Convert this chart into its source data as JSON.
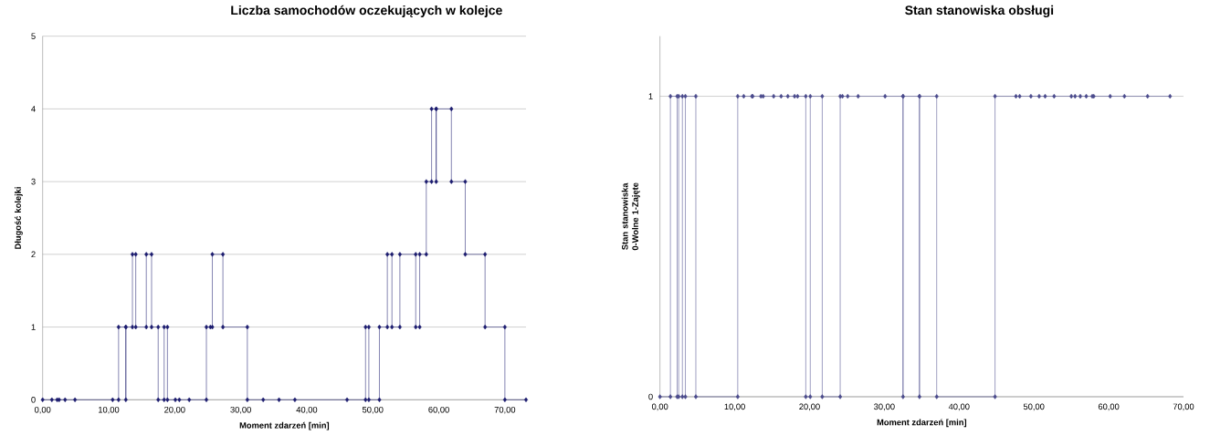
{
  "chart_data": [
    {
      "type": "line",
      "title": "Liczba samochodów oczekujących w kolejce",
      "xlabel": "Moment zdarzeń [min]",
      "ylabel": "Długość kolejki",
      "x": [
        0,
        1.4,
        2.2,
        2.5,
        3.4,
        4.9,
        10.6,
        11.5,
        11.5,
        12.6,
        12.6,
        12.6,
        13.6,
        13.6,
        14.1,
        14.1,
        15.7,
        15.7,
        16.5,
        16.5,
        17.5,
        17.5,
        18.4,
        18.4,
        18.9,
        18.9,
        20.1,
        20.7,
        22.2,
        24.8,
        24.8,
        25.4,
        25.7,
        25.7,
        27.3,
        27.3,
        31.0,
        31.0,
        33.4,
        35.8,
        38.2,
        46.1,
        48.9,
        48.9,
        49.4,
        49.4,
        51.0,
        51.0,
        52.2,
        52.2,
        52.9,
        52.9,
        54.1,
        54.1,
        56.5,
        56.5,
        57.1,
        57.1,
        58.1,
        58.1,
        58.9,
        58.9,
        59.6,
        59.6,
        59.6,
        61.9,
        61.9,
        64.0,
        64.0,
        67.0,
        67.0,
        70.0,
        70.0,
        73.2
      ],
      "values": [
        0,
        0,
        0,
        0,
        0,
        0,
        0,
        0,
        1,
        1,
        0,
        1,
        1,
        2,
        2,
        1,
        1,
        2,
        2,
        1,
        1,
        0,
        0,
        1,
        1,
        0,
        0,
        0,
        0,
        0,
        1,
        1,
        1,
        2,
        2,
        1,
        1,
        0,
        0,
        0,
        0,
        0,
        0,
        1,
        1,
        0,
        0,
        1,
        1,
        2,
        2,
        1,
        1,
        2,
        2,
        1,
        1,
        2,
        2,
        3,
        3,
        4,
        4,
        3,
        4,
        4,
        3,
        3,
        2,
        2,
        1,
        1,
        0,
        0
      ],
      "color": "#1a1a6e",
      "marker": "diamond",
      "line_style": "solid",
      "grid": "y",
      "xlim": [
        0,
        73.2
      ],
      "ylim": [
        0,
        5
      ],
      "xticks": [
        {
          "value": 0,
          "label": "0,00"
        },
        {
          "value": 10,
          "label": "10,00"
        },
        {
          "value": 20,
          "label": "20,00"
        },
        {
          "value": 30,
          "label": "30,00"
        },
        {
          "value": 40,
          "label": "40,00"
        },
        {
          "value": 50,
          "label": "50,00"
        },
        {
          "value": 60,
          "label": "60,00"
        },
        {
          "value": 70,
          "label": "70,00"
        }
      ],
      "yticks": [
        0,
        1,
        2,
        3,
        4,
        5
      ]
    },
    {
      "type": "line",
      "title": "Stan stanowiska obsługi",
      "xlabel": "Moment zdarzeń [min]",
      "ylabel": "Stan stanowiska 0-Wolne 1-Zajęte",
      "x": [
        0,
        1.4,
        1.4,
        2.3,
        2.3,
        2.5,
        2.5,
        3.0,
        3.0,
        3.4,
        3.4,
        4.8,
        4.8,
        10.4,
        10.4,
        11.2,
        12.3,
        12.4,
        13.5,
        13.8,
        15.2,
        16.2,
        17.1,
        18.0,
        18.4,
        19.5,
        19.5,
        20.1,
        20.1,
        21.7,
        21.7,
        24.1,
        24.1,
        24.4,
        25.1,
        26.5,
        30.1,
        32.5,
        32.5,
        32.5,
        34.7,
        34.7,
        34.7,
        37.0,
        37.0,
        44.8,
        44.8,
        47.6,
        48.1,
        49.6,
        50.7,
        51.5,
        52.7,
        55.0,
        55.5,
        56.2,
        57.0,
        57.8,
        58.0,
        60.2,
        62.1,
        65.2,
        68.2
      ],
      "values": [
        0,
        0,
        1,
        1,
        0,
        0,
        1,
        1,
        0,
        0,
        1,
        1,
        0,
        0,
        1,
        1,
        1,
        1,
        1,
        1,
        1,
        1,
        1,
        1,
        1,
        1,
        0,
        0,
        1,
        1,
        0,
        0,
        1,
        1,
        1,
        1,
        1,
        1,
        0,
        1,
        1,
        0,
        1,
        1,
        0,
        0,
        1,
        1,
        1,
        1,
        1,
        1,
        1,
        1,
        1,
        1,
        1,
        1,
        1,
        1,
        1,
        1,
        1
      ],
      "color": "#4a4a8c",
      "marker": "diamond",
      "line_style": "solid",
      "grid": "y",
      "xlim": [
        0,
        70
      ],
      "ylim": [
        0,
        1.2
      ],
      "xticks": [
        {
          "value": 0,
          "label": "0,00"
        },
        {
          "value": 10,
          "label": "10,00"
        },
        {
          "value": 20,
          "label": "20,00"
        },
        {
          "value": 30,
          "label": "30,00"
        },
        {
          "value": 40,
          "label": "40,00"
        },
        {
          "value": 50,
          "label": "50,00"
        },
        {
          "value": 60,
          "label": "60,00"
        },
        {
          "value": 70,
          "label": "70,00"
        }
      ],
      "yticks": [
        0,
        1
      ]
    }
  ]
}
